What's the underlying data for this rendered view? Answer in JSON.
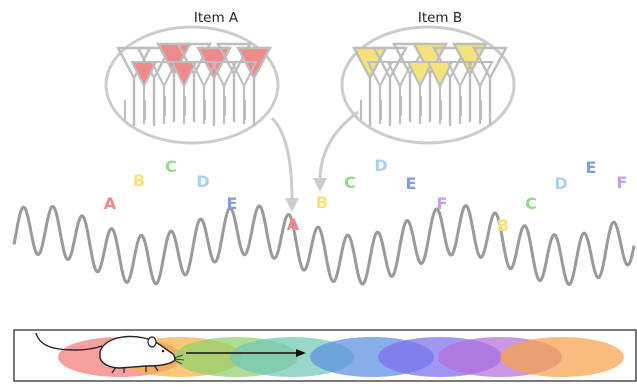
{
  "items": [
    {
      "label": "Item A",
      "color": "#f08a8a"
    },
    {
      "label": "Item B",
      "color": "#f5e27a"
    }
  ],
  "wave_letters": [
    {
      "text": "A",
      "color": "#f08a8a"
    },
    {
      "text": "B",
      "color": "#f5e27a"
    },
    {
      "text": "C",
      "color": "#92d98a"
    },
    {
      "text": "D",
      "color": "#a6d4f0"
    },
    {
      "text": "E",
      "color": "#7f9de8"
    },
    {
      "text": "A",
      "color": "#f08a8a"
    },
    {
      "text": "B",
      "color": "#f5e27a"
    },
    {
      "text": "C",
      "color": "#92d98a"
    },
    {
      "text": "D",
      "color": "#a6d4f0"
    },
    {
      "text": "E",
      "color": "#7f9de8"
    },
    {
      "text": "F",
      "color": "#c99cf0"
    },
    {
      "text": "B",
      "color": "#f5e27a"
    },
    {
      "text": "C",
      "color": "#92d98a"
    },
    {
      "text": "D",
      "color": "#a6d4f0"
    },
    {
      "text": "E",
      "color": "#7f9de8"
    },
    {
      "text": "F",
      "color": "#c99cf0"
    }
  ],
  "place_field_colors": [
    "#f27a7a",
    "#f7b046",
    "#8ed16a",
    "#72c7b5",
    "#5a8fe0",
    "#7c6ef0",
    "#b46fd8",
    "#f7a24a"
  ],
  "wave_color": "#9a9a9a",
  "arrow_color": "#cccccc"
}
